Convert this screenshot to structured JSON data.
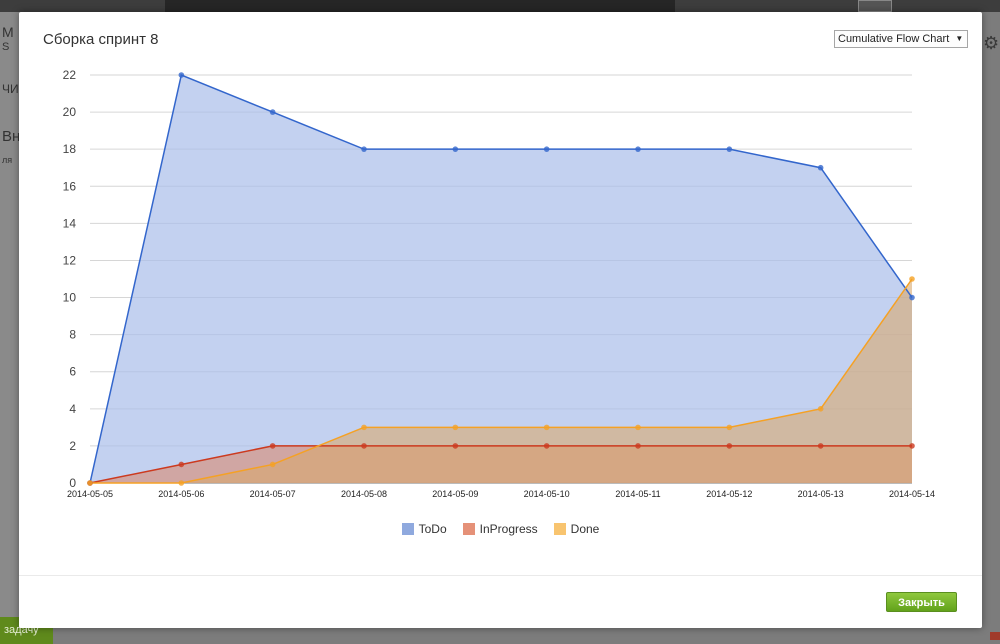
{
  "background": {
    "left_texts": [
      "М",
      "S",
      "ЧИ",
      "Вн",
      "ля"
    ],
    "green_button_label": "задачу"
  },
  "modal": {
    "title": "Сборка спринт 8",
    "chart_selector": "Cumulative Flow Chart",
    "close_button": "Закрыть"
  },
  "chart_data": {
    "type": "area",
    "title": "",
    "xlabel": "",
    "ylabel": "",
    "ylim": [
      0,
      22
    ],
    "yticks": [
      0,
      2,
      4,
      6,
      8,
      10,
      12,
      14,
      16,
      18,
      20,
      22
    ],
    "grid": true,
    "legend_position": "bottom",
    "x": [
      "2014-05-05",
      "2014-05-06",
      "2014-05-07",
      "2014-05-08",
      "2014-05-09",
      "2014-05-10",
      "2014-05-11",
      "2014-05-12",
      "2014-05-13",
      "2014-05-14"
    ],
    "series": [
      {
        "name": "ToDo",
        "values": [
          0,
          22,
          20,
          18,
          18,
          18,
          18,
          18,
          17,
          10
        ],
        "line_color": "#3366cc",
        "fill_color": "#a9bde9",
        "legend_color": "#8fa9de"
      },
      {
        "name": "InProgress",
        "values": [
          0,
          1,
          2,
          2,
          2,
          2,
          2,
          2,
          2,
          2
        ],
        "line_color": "#cc3a1f",
        "fill_color": "#d98870",
        "legend_color": "#e59178"
      },
      {
        "name": "Done",
        "values": [
          0,
          0,
          1,
          3,
          3,
          3,
          3,
          3,
          4,
          11
        ],
        "line_color": "#f5a124",
        "fill_color": "#d9a86e",
        "legend_color": "#f8c46f"
      }
    ]
  }
}
